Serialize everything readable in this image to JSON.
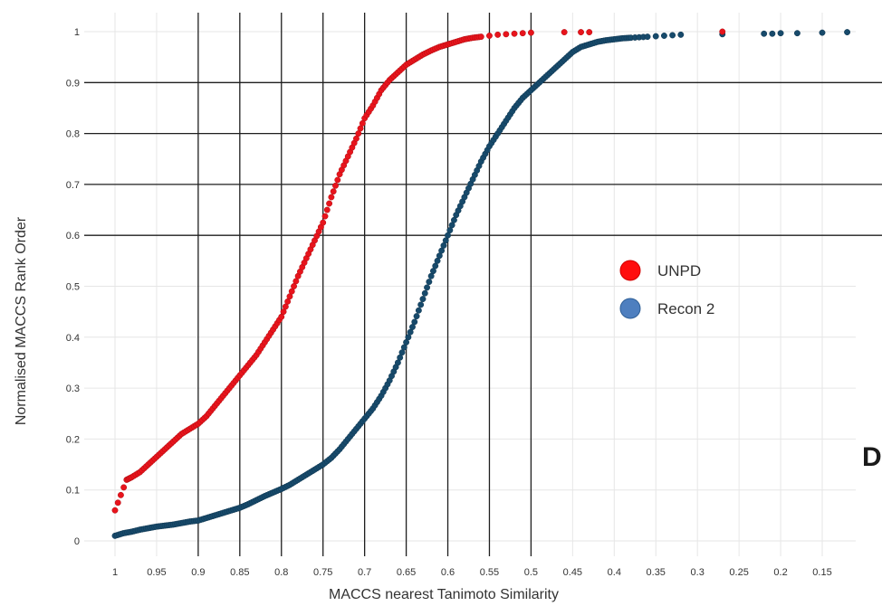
{
  "chart_data": {
    "type": "scatter",
    "title": "",
    "xlabel": "MACCS nearest Tanimoto Similarity",
    "ylabel": "Normalised MACCS Rank Order",
    "xlim": [
      1.0,
      0.15
    ],
    "x_reversed": true,
    "ylim": [
      0,
      1
    ],
    "x_ticks": [
      "1",
      "0.95",
      "0.9",
      "0.85",
      "0.8",
      "0.75",
      "0.7",
      "0.65",
      "0.6",
      "0.55",
      "0.5",
      "0.45",
      "0.4",
      "0.35",
      "0.3",
      "0.25",
      "0.2",
      "0.15"
    ],
    "y_ticks": [
      "0",
      "0.1",
      "0.2",
      "0.3",
      "0.4",
      "0.5",
      "0.6",
      "0.7",
      "0.8",
      "0.9",
      "1"
    ],
    "grid": "major grid lines at x = 0.9–0.5 and y = 0.6–0.9",
    "legend_position": "center-right",
    "series": [
      {
        "name": "UNPD",
        "color": "#e8141c",
        "x": [
          1.0,
          0.986,
          0.98,
          0.97,
          0.96,
          0.95,
          0.94,
          0.93,
          0.92,
          0.91,
          0.9,
          0.89,
          0.88,
          0.87,
          0.86,
          0.85,
          0.84,
          0.83,
          0.82,
          0.81,
          0.8,
          0.79,
          0.78,
          0.77,
          0.76,
          0.75,
          0.74,
          0.73,
          0.72,
          0.71,
          0.7,
          0.69,
          0.68,
          0.67,
          0.66,
          0.65,
          0.64,
          0.63,
          0.62,
          0.61,
          0.6,
          0.59,
          0.58,
          0.57,
          0.56,
          0.55,
          0.54,
          0.53,
          0.52,
          0.51,
          0.5,
          0.46,
          0.44,
          0.43,
          0.27
        ],
        "y": [
          0.06,
          0.12,
          0.125,
          0.135,
          0.15,
          0.165,
          0.18,
          0.195,
          0.21,
          0.22,
          0.23,
          0.245,
          0.265,
          0.285,
          0.305,
          0.325,
          0.345,
          0.365,
          0.39,
          0.415,
          0.44,
          0.48,
          0.52,
          0.555,
          0.59,
          0.625,
          0.675,
          0.72,
          0.755,
          0.79,
          0.83,
          0.855,
          0.885,
          0.905,
          0.92,
          0.935,
          0.945,
          0.955,
          0.963,
          0.97,
          0.975,
          0.98,
          0.985,
          0.988,
          0.99,
          0.992,
          0.994,
          0.995,
          0.996,
          0.997,
          0.998,
          0.999,
          0.999,
          0.999,
          1.0
        ]
      },
      {
        "name": "Recon 2",
        "color": "#174a6b",
        "x": [
          1.0,
          0.99,
          0.98,
          0.97,
          0.96,
          0.95,
          0.94,
          0.93,
          0.92,
          0.91,
          0.9,
          0.89,
          0.88,
          0.87,
          0.86,
          0.85,
          0.84,
          0.83,
          0.82,
          0.81,
          0.8,
          0.79,
          0.78,
          0.77,
          0.76,
          0.75,
          0.74,
          0.73,
          0.72,
          0.71,
          0.7,
          0.69,
          0.68,
          0.67,
          0.66,
          0.65,
          0.64,
          0.63,
          0.62,
          0.61,
          0.6,
          0.59,
          0.58,
          0.57,
          0.56,
          0.55,
          0.54,
          0.53,
          0.52,
          0.51,
          0.5,
          0.49,
          0.48,
          0.47,
          0.46,
          0.45,
          0.44,
          0.43,
          0.42,
          0.41,
          0.4,
          0.39,
          0.38,
          0.36,
          0.35,
          0.34,
          0.33,
          0.32,
          0.27,
          0.22,
          0.21,
          0.2,
          0.18,
          0.15,
          0.12
        ],
        "y": [
          0.01,
          0.015,
          0.018,
          0.022,
          0.025,
          0.028,
          0.03,
          0.032,
          0.035,
          0.038,
          0.04,
          0.045,
          0.05,
          0.055,
          0.06,
          0.065,
          0.072,
          0.08,
          0.088,
          0.095,
          0.102,
          0.11,
          0.12,
          0.13,
          0.14,
          0.15,
          0.163,
          0.18,
          0.2,
          0.22,
          0.24,
          0.26,
          0.285,
          0.315,
          0.35,
          0.39,
          0.43,
          0.475,
          0.52,
          0.56,
          0.6,
          0.64,
          0.675,
          0.71,
          0.745,
          0.775,
          0.8,
          0.825,
          0.85,
          0.87,
          0.885,
          0.9,
          0.915,
          0.93,
          0.945,
          0.96,
          0.97,
          0.975,
          0.98,
          0.983,
          0.985,
          0.987,
          0.988,
          0.99,
          0.991,
          0.992,
          0.993,
          0.994,
          0.995,
          0.996,
          0.996,
          0.997,
          0.997,
          0.998,
          0.999
        ]
      }
    ],
    "annotations": [
      {
        "text": "D"
      }
    ]
  }
}
